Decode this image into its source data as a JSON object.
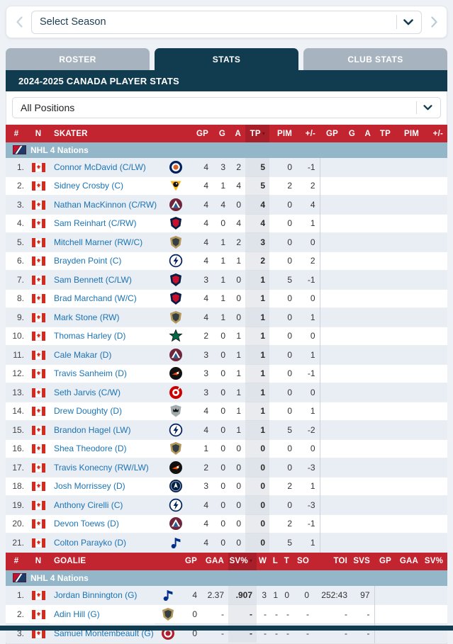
{
  "season_selector": {
    "placeholder": "Select Season"
  },
  "tabs": [
    {
      "label": "ROSTER",
      "active": false
    },
    {
      "label": "STATS",
      "active": true
    },
    {
      "label": "CLUB STATS",
      "active": false
    }
  ],
  "title": "2024-2025 CANADA PLAYER STATS",
  "position_filter": {
    "value": "All Positions"
  },
  "colors": {
    "header_red": "#c22430",
    "sorted_red": "#a81e29",
    "navy": "#113c50",
    "tab_gray": "#a7b4bf",
    "section_blue": "#93b6c9",
    "link_blue": "#1b74b4",
    "row_alt": "#e9edf4"
  },
  "teams": {
    "edm": {
      "name": "edmonton-oilers",
      "shape": "roundel",
      "primary": "#00205b",
      "secondary": "#d9622b"
    },
    "pit": {
      "name": "pittsburgh-penguins",
      "shape": "triangle",
      "primary": "#111111",
      "secondary": "#fcb514"
    },
    "col": {
      "name": "colorado-avalanche",
      "shape": "mountain",
      "primary": "#6f263d",
      "secondary": "#236192"
    },
    "fla": {
      "name": "florida-panthers",
      "shape": "shield",
      "primary": "#041e42",
      "secondary": "#c8102e"
    },
    "vgk": {
      "name": "vegas-golden-knights",
      "shape": "shield",
      "primary": "#b4975a",
      "secondary": "#333f42"
    },
    "tbl": {
      "name": "tampa-bay-lightning",
      "shape": "bolt",
      "primary": "#00205b",
      "secondary": "#00205b"
    },
    "dal": {
      "name": "dallas-stars",
      "shape": "star",
      "primary": "#006847",
      "secondary": "#111111"
    },
    "phi": {
      "name": "philadelphia-flyers",
      "shape": "wing",
      "primary": "#111111",
      "secondary": "#f74902"
    },
    "car": {
      "name": "carolina-hurricanes",
      "shape": "swirl",
      "primary": "#cc0000",
      "secondary": "#111111"
    },
    "lak": {
      "name": "los-angeles-kings",
      "shape": "crown",
      "primary": "#111111",
      "secondary": "#a2aaad"
    },
    "wpg": {
      "name": "winnipeg-jets",
      "shape": "jet",
      "primary": "#041e42",
      "secondary": "#7b9bc4"
    },
    "stl": {
      "name": "st-louis-blues",
      "shape": "note",
      "primary": "#002f87",
      "secondary": "#fcb514"
    },
    "mtl": {
      "name": "montreal-canadiens",
      "shape": "roundel",
      "primary": "#af1e2d",
      "secondary": "#af1e2d"
    }
  },
  "skater_table": {
    "name": "skater-table",
    "section": "NHL 4 Nations",
    "columns": [
      {
        "key": "rank",
        "label": "#",
        "cls": "rank",
        "align": "center"
      },
      {
        "key": "flag",
        "label": "N",
        "cls": "flag",
        "align": "center"
      },
      {
        "key": "name",
        "label": "SKATER",
        "cls": "name",
        "align": "left"
      },
      {
        "key": "logo",
        "label": "",
        "cls": "logo",
        "align": "center"
      },
      {
        "key": "gp",
        "label": "GP",
        "num": true
      },
      {
        "key": "g",
        "label": "G",
        "num": true
      },
      {
        "key": "a",
        "label": "A",
        "num": true
      },
      {
        "key": "tp",
        "label": "TP",
        "num": true,
        "sorted": true
      },
      {
        "key": "pim",
        "label": "PIM",
        "num": true
      },
      {
        "key": "pm",
        "label": "+/-",
        "num": true,
        "divider": true
      },
      {
        "key": "gp2",
        "label": "GP",
        "num": true
      },
      {
        "key": "g2",
        "label": "G",
        "num": true
      },
      {
        "key": "a2",
        "label": "A",
        "num": true
      },
      {
        "key": "tp2",
        "label": "TP",
        "num": true
      },
      {
        "key": "pim2",
        "label": "PIM",
        "num": true
      },
      {
        "key": "pm2",
        "label": "+/-",
        "num": true
      }
    ],
    "rows": [
      {
        "rank": "1.",
        "name": "Connor McDavid (C/LW)",
        "team": "edm",
        "gp": "4",
        "g": "3",
        "a": "2",
        "tp": "5",
        "pim": "0",
        "pm": "-1"
      },
      {
        "rank": "2.",
        "name": "Sidney Crosby (C)",
        "team": "pit",
        "gp": "4",
        "g": "1",
        "a": "4",
        "tp": "5",
        "pim": "2",
        "pm": "2"
      },
      {
        "rank": "3.",
        "name": "Nathan MacKinnon (C/RW)",
        "team": "col",
        "gp": "4",
        "g": "4",
        "a": "0",
        "tp": "4",
        "pim": "0",
        "pm": "4"
      },
      {
        "rank": "4.",
        "name": "Sam Reinhart (C/RW)",
        "team": "fla",
        "gp": "4",
        "g": "0",
        "a": "4",
        "tp": "4",
        "pim": "0",
        "pm": "1"
      },
      {
        "rank": "5.",
        "name": "Mitchell Marner (RW/C)",
        "team": "vgk",
        "gp": "4",
        "g": "1",
        "a": "2",
        "tp": "3",
        "pim": "0",
        "pm": "0"
      },
      {
        "rank": "6.",
        "name": "Brayden Point (C)",
        "team": "tbl",
        "gp": "4",
        "g": "1",
        "a": "1",
        "tp": "2",
        "pim": "0",
        "pm": "2"
      },
      {
        "rank": "7.",
        "name": "Sam Bennett (C/LW)",
        "team": "fla",
        "gp": "3",
        "g": "1",
        "a": "0",
        "tp": "1",
        "pim": "5",
        "pm": "-1"
      },
      {
        "rank": "8.",
        "name": "Brad Marchand (W/C)",
        "team": "fla",
        "gp": "4",
        "g": "1",
        "a": "0",
        "tp": "1",
        "pim": "0",
        "pm": "0"
      },
      {
        "rank": "9.",
        "name": "Mark Stone (RW)",
        "team": "vgk",
        "gp": "4",
        "g": "1",
        "a": "0",
        "tp": "1",
        "pim": "0",
        "pm": "1"
      },
      {
        "rank": "10.",
        "name": "Thomas Harley (D)",
        "team": "dal",
        "gp": "2",
        "g": "0",
        "a": "1",
        "tp": "1",
        "pim": "0",
        "pm": "0"
      },
      {
        "rank": "11.",
        "name": "Cale Makar (D)",
        "team": "col",
        "gp": "3",
        "g": "0",
        "a": "1",
        "tp": "1",
        "pim": "0",
        "pm": "1"
      },
      {
        "rank": "12.",
        "name": "Travis Sanheim (D)",
        "team": "phi",
        "gp": "3",
        "g": "0",
        "a": "1",
        "tp": "1",
        "pim": "0",
        "pm": "-1"
      },
      {
        "rank": "13.",
        "name": "Seth Jarvis (C/W)",
        "team": "car",
        "gp": "3",
        "g": "0",
        "a": "1",
        "tp": "1",
        "pim": "0",
        "pm": "0"
      },
      {
        "rank": "14.",
        "name": "Drew Doughty (D)",
        "team": "lak",
        "gp": "4",
        "g": "0",
        "a": "1",
        "tp": "1",
        "pim": "0",
        "pm": "1"
      },
      {
        "rank": "15.",
        "name": "Brandon Hagel (LW)",
        "team": "tbl",
        "gp": "4",
        "g": "0",
        "a": "1",
        "tp": "1",
        "pim": "5",
        "pm": "-2"
      },
      {
        "rank": "16.",
        "name": "Shea Theodore (D)",
        "team": "vgk",
        "gp": "1",
        "g": "0",
        "a": "0",
        "tp": "0",
        "pim": "0",
        "pm": "0"
      },
      {
        "rank": "17.",
        "name": "Travis Konecny (RW/LW)",
        "team": "phi",
        "gp": "2",
        "g": "0",
        "a": "0",
        "tp": "0",
        "pim": "0",
        "pm": "-3"
      },
      {
        "rank": "18.",
        "name": "Josh Morrissey (D)",
        "team": "wpg",
        "gp": "3",
        "g": "0",
        "a": "0",
        "tp": "0",
        "pim": "2",
        "pm": "1"
      },
      {
        "rank": "19.",
        "name": "Anthony Cirelli (C)",
        "team": "tbl",
        "gp": "4",
        "g": "0",
        "a": "0",
        "tp": "0",
        "pim": "0",
        "pm": "-3"
      },
      {
        "rank": "20.",
        "name": "Devon Toews (D)",
        "team": "col",
        "gp": "4",
        "g": "0",
        "a": "0",
        "tp": "0",
        "pim": "2",
        "pm": "-1"
      },
      {
        "rank": "21.",
        "name": "Colton Parayko (D)",
        "team": "stl",
        "gp": "4",
        "g": "0",
        "a": "0",
        "tp": "0",
        "pim": "5",
        "pm": "1"
      }
    ]
  },
  "goalie_table": {
    "name": "goalie-table",
    "section": "NHL 4 Nations",
    "columns": [
      {
        "key": "rank",
        "label": "#",
        "cls": "rank",
        "align": "center"
      },
      {
        "key": "flag",
        "label": "N",
        "cls": "flag",
        "align": "center"
      },
      {
        "key": "name",
        "label": "GOALIE",
        "cls": "name",
        "align": "left"
      },
      {
        "key": "logo",
        "label": "",
        "cls": "logo",
        "align": "center"
      },
      {
        "key": "gp",
        "label": "GP",
        "num": true
      },
      {
        "key": "gaa",
        "label": "GAA",
        "num": true
      },
      {
        "key": "svpct",
        "label": "SV%",
        "num": true,
        "sorted": true
      },
      {
        "key": "w",
        "label": "W",
        "num": true
      },
      {
        "key": "l",
        "label": "L",
        "num": true
      },
      {
        "key": "t",
        "label": "T",
        "num": true
      },
      {
        "key": "so",
        "label": "SO",
        "num": true
      },
      {
        "key": "toi",
        "label": "TOI",
        "num": true
      },
      {
        "key": "svs",
        "label": "SVS",
        "num": true,
        "divider": true
      },
      {
        "key": "gp2",
        "label": "GP",
        "num": true
      },
      {
        "key": "gaa2",
        "label": "GAA",
        "num": true
      },
      {
        "key": "svpct2",
        "label": "SV%",
        "num": true
      }
    ],
    "rows": [
      {
        "rank": "1.",
        "name": "Jordan Binnington (G)",
        "team": "stl",
        "gp": "4",
        "gaa": "2.37",
        "svpct": ".907",
        "w": "3",
        "l": "1",
        "t": "0",
        "so": "0",
        "toi": "252:43",
        "svs": "97"
      },
      {
        "rank": "2.",
        "name": "Adin Hill (G)",
        "team": "vgk",
        "gp": "0",
        "gaa": "-",
        "svpct": "-",
        "w": "-",
        "l": "-",
        "t": "-",
        "so": "-",
        "toi": "-",
        "svs": "-"
      },
      {
        "rank": "3.",
        "name": "Samuel Montembeault (G)",
        "team": "mtl",
        "gp": "0",
        "gaa": "-",
        "svpct": "-",
        "w": "-",
        "l": "-",
        "t": "-",
        "so": "-",
        "toi": "-",
        "svs": "-"
      }
    ]
  }
}
